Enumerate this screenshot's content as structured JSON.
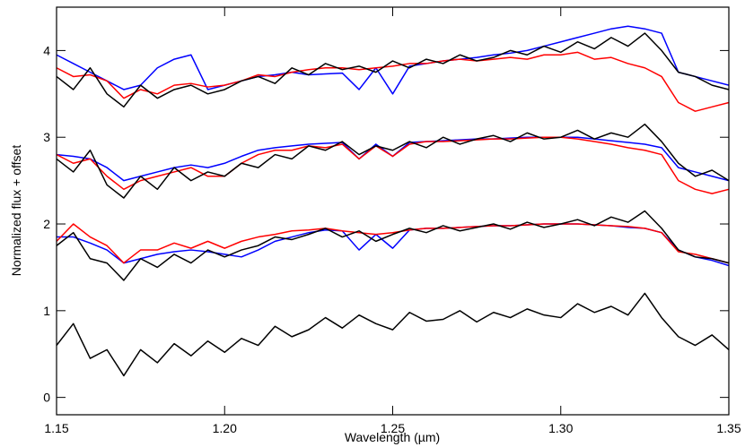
{
  "chart_data": {
    "type": "line",
    "x_label": "Wavelength (µm)",
    "y_label": "Normalized flux + offset",
    "x": [
      1.15,
      1.155,
      1.16,
      1.165,
      1.17,
      1.175,
      1.18,
      1.185,
      1.19,
      1.195,
      1.2,
      1.205,
      1.21,
      1.215,
      1.22,
      1.225,
      1.23,
      1.235,
      1.24,
      1.245,
      1.25,
      1.255,
      1.26,
      1.265,
      1.27,
      1.275,
      1.28,
      1.285,
      1.29,
      1.295,
      1.3,
      1.305,
      1.31,
      1.315,
      1.32,
      1.325,
      1.33,
      1.335,
      1.34,
      1.345,
      1.35
    ],
    "xlim": [
      1.15,
      1.35
    ],
    "xticks": [
      1.15,
      {
        "value": 1.2,
        "label": "1.20"
      },
      1.25,
      {
        "value": 1.3,
        "label": "1.30"
      },
      1.35
    ],
    "ylim": [
      -0.2,
      4.5
    ],
    "yticks": [
      0,
      1,
      2,
      3,
      4
    ],
    "series": [
      {
        "color": "#0000ff",
        "values": [
          3.95,
          3.85,
          3.75,
          3.65,
          3.55,
          3.6,
          3.8,
          3.9,
          3.95,
          3.55,
          3.6,
          3.65,
          3.7,
          3.72,
          3.75,
          3.72,
          3.73,
          3.74,
          3.55,
          3.8,
          3.5,
          3.82,
          3.85,
          3.88,
          3.9,
          3.92,
          3.95,
          3.97,
          4.0,
          4.05,
          4.1,
          4.15,
          4.2,
          4.25,
          4.28,
          4.25,
          4.2,
          3.75,
          3.7,
          3.65,
          3.6
        ]
      },
      {
        "color": "#ff0000",
        "values": [
          3.8,
          3.7,
          3.72,
          3.65,
          3.45,
          3.55,
          3.5,
          3.6,
          3.62,
          3.58,
          3.6,
          3.65,
          3.72,
          3.7,
          3.75,
          3.78,
          3.8,
          3.8,
          3.78,
          3.8,
          3.82,
          3.85,
          3.85,
          3.88,
          3.9,
          3.88,
          3.9,
          3.92,
          3.9,
          3.95,
          3.95,
          3.98,
          3.9,
          3.92,
          3.85,
          3.8,
          3.7,
          3.4,
          3.3,
          3.35,
          3.4
        ]
      },
      {
        "color": "#000000",
        "values": [
          3.7,
          3.55,
          3.8,
          3.5,
          3.35,
          3.6,
          3.45,
          3.55,
          3.6,
          3.5,
          3.55,
          3.65,
          3.7,
          3.62,
          3.8,
          3.72,
          3.85,
          3.78,
          3.82,
          3.75,
          3.88,
          3.8,
          3.9,
          3.85,
          3.95,
          3.88,
          3.92,
          4.0,
          3.95,
          4.05,
          3.98,
          4.1,
          4.02,
          4.15,
          4.05,
          4.2,
          4.0,
          3.75,
          3.7,
          3.6,
          3.55
        ]
      },
      {
        "color": "#0000ff",
        "values": [
          2.8,
          2.78,
          2.75,
          2.65,
          2.5,
          2.55,
          2.6,
          2.65,
          2.68,
          2.65,
          2.7,
          2.78,
          2.85,
          2.88,
          2.9,
          2.92,
          2.93,
          2.94,
          2.75,
          2.92,
          2.78,
          2.94,
          2.95,
          2.96,
          2.97,
          2.98,
          2.98,
          2.99,
          3.0,
          3.0,
          3.0,
          3.0,
          2.98,
          2.96,
          2.94,
          2.92,
          2.88,
          2.65,
          2.6,
          2.55,
          2.5
        ]
      },
      {
        "color": "#ff0000",
        "values": [
          2.8,
          2.7,
          2.75,
          2.55,
          2.4,
          2.5,
          2.55,
          2.6,
          2.65,
          2.55,
          2.55,
          2.7,
          2.8,
          2.85,
          2.85,
          2.9,
          2.88,
          2.92,
          2.75,
          2.9,
          2.78,
          2.92,
          2.95,
          2.95,
          2.96,
          2.97,
          2.98,
          2.98,
          2.99,
          3.0,
          3.0,
          2.98,
          2.95,
          2.92,
          2.88,
          2.85,
          2.8,
          2.5,
          2.4,
          2.35,
          2.4
        ]
      },
      {
        "color": "#000000",
        "values": [
          2.75,
          2.6,
          2.85,
          2.45,
          2.3,
          2.55,
          2.4,
          2.65,
          2.5,
          2.6,
          2.55,
          2.7,
          2.65,
          2.8,
          2.75,
          2.9,
          2.85,
          2.95,
          2.8,
          2.9,
          2.85,
          2.95,
          2.88,
          3.0,
          2.92,
          2.98,
          3.02,
          2.95,
          3.05,
          2.98,
          3.0,
          3.08,
          2.98,
          3.05,
          3.0,
          3.15,
          2.95,
          2.7,
          2.55,
          2.62,
          2.5
        ]
      },
      {
        "color": "#0000ff",
        "values": [
          1.85,
          1.85,
          1.78,
          1.7,
          1.55,
          1.6,
          1.65,
          1.68,
          1.7,
          1.68,
          1.65,
          1.62,
          1.7,
          1.8,
          1.85,
          1.9,
          1.93,
          1.92,
          1.7,
          1.88,
          1.72,
          1.93,
          1.95,
          1.95,
          1.96,
          1.97,
          1.98,
          1.98,
          1.99,
          2.0,
          2.0,
          2.0,
          1.99,
          1.98,
          1.96,
          1.95,
          1.9,
          1.7,
          1.62,
          1.58,
          1.52
        ]
      },
      {
        "color": "#ff0000",
        "values": [
          1.8,
          2.0,
          1.85,
          1.75,
          1.55,
          1.7,
          1.7,
          1.78,
          1.72,
          1.8,
          1.72,
          1.8,
          1.85,
          1.88,
          1.92,
          1.93,
          1.95,
          1.92,
          1.9,
          1.88,
          1.9,
          1.93,
          1.95,
          1.95,
          1.96,
          1.97,
          1.98,
          1.98,
          1.99,
          2.0,
          2.0,
          2.0,
          1.99,
          1.98,
          1.97,
          1.95,
          1.9,
          1.68,
          1.65,
          1.6,
          1.55
        ]
      },
      {
        "color": "#000000",
        "values": [
          1.75,
          1.9,
          1.6,
          1.55,
          1.35,
          1.6,
          1.5,
          1.65,
          1.55,
          1.7,
          1.62,
          1.7,
          1.75,
          1.85,
          1.82,
          1.88,
          1.95,
          1.85,
          1.92,
          1.8,
          1.88,
          1.95,
          1.9,
          1.98,
          1.92,
          1.96,
          2.0,
          1.94,
          2.02,
          1.96,
          2.0,
          2.05,
          1.98,
          2.08,
          2.02,
          2.15,
          1.95,
          1.7,
          1.62,
          1.6,
          1.55
        ]
      },
      {
        "color": "#000000",
        "values": [
          0.6,
          0.85,
          0.45,
          0.55,
          0.25,
          0.55,
          0.4,
          0.62,
          0.48,
          0.65,
          0.52,
          0.68,
          0.6,
          0.82,
          0.7,
          0.78,
          0.92,
          0.8,
          0.95,
          0.85,
          0.78,
          0.98,
          0.88,
          0.9,
          1.0,
          0.87,
          0.98,
          0.92,
          1.02,
          0.95,
          0.92,
          1.08,
          0.98,
          1.05,
          0.95,
          1.2,
          0.92,
          0.7,
          0.6,
          0.72,
          0.55
        ]
      }
    ]
  }
}
